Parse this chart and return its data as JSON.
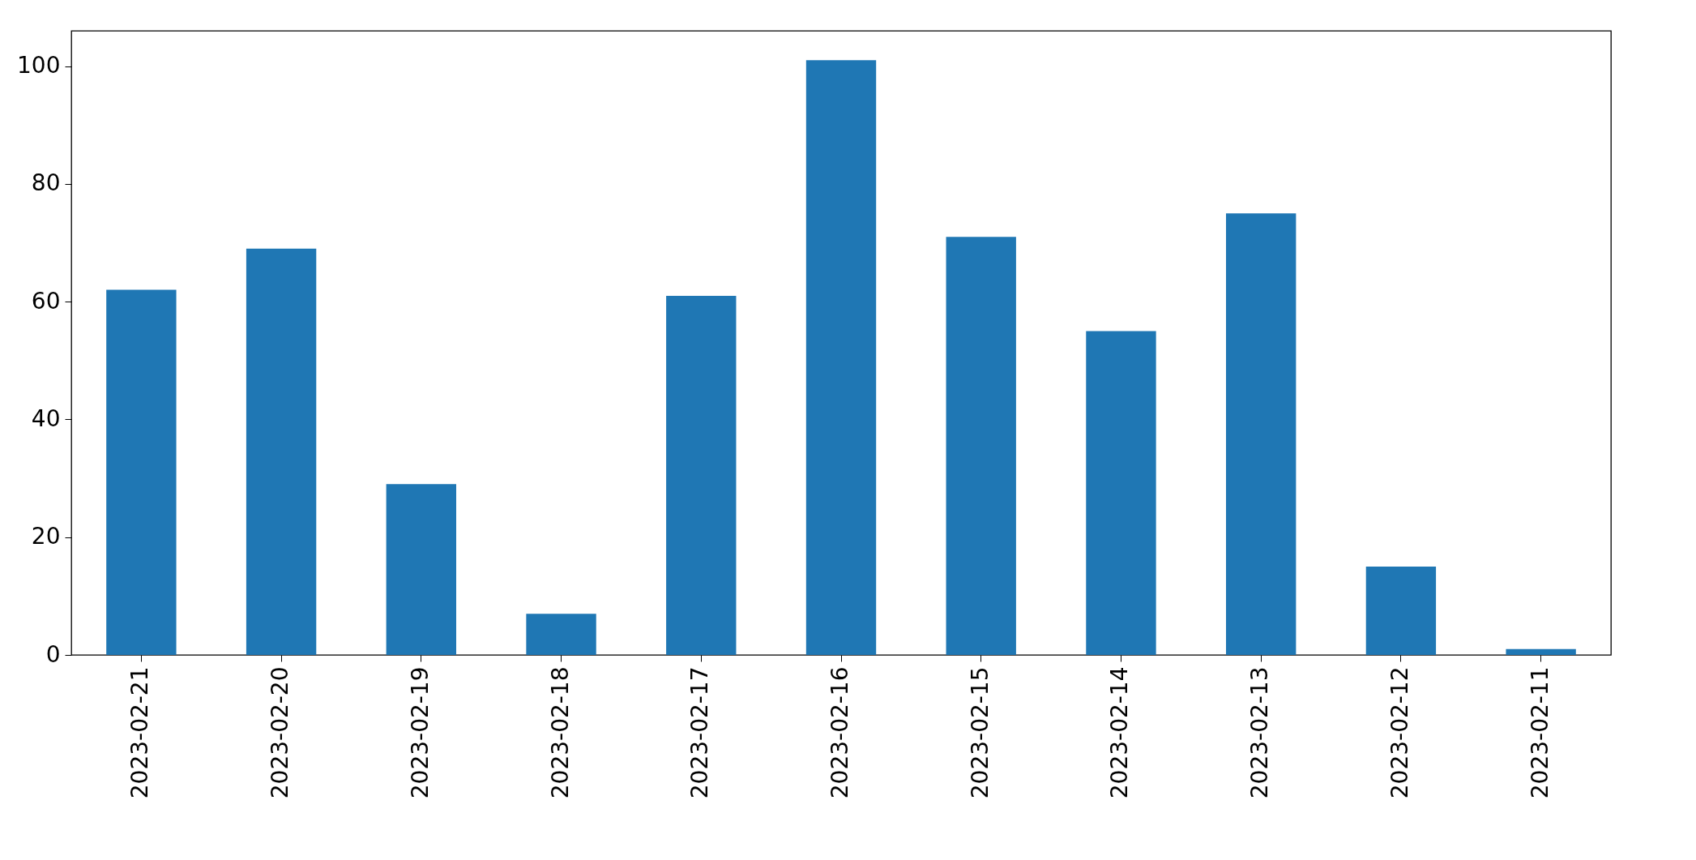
{
  "chart_data": {
    "type": "bar",
    "categories": [
      "2023-02-21",
      "2023-02-20",
      "2023-02-19",
      "2023-02-18",
      "2023-02-17",
      "2023-02-16",
      "2023-02-15",
      "2023-02-14",
      "2023-02-13",
      "2023-02-12",
      "2023-02-11"
    ],
    "values": [
      62,
      69,
      29,
      7,
      61,
      101,
      71,
      55,
      75,
      15,
      1
    ],
    "color": "#1f77b4",
    "ylim": [
      0,
      106
    ],
    "yticks": [
      0,
      20,
      40,
      60,
      80,
      100
    ],
    "grid": false
  }
}
